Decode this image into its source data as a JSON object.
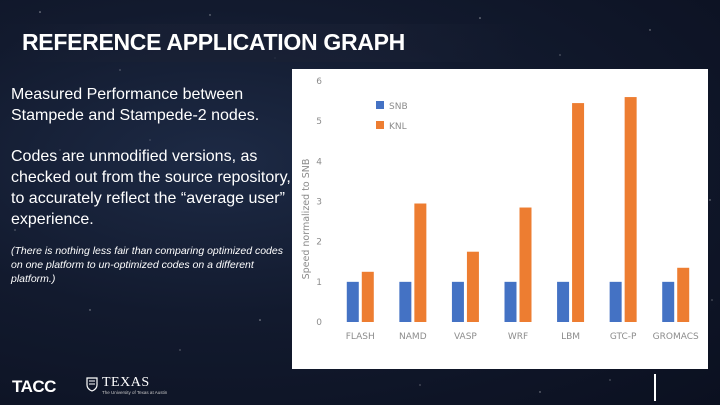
{
  "slide": {
    "title": "REFERENCE APPLICATION GRAPH",
    "paragraph_1": "Measured Performance between Stampede and Stampede-2 nodes.",
    "paragraph_2": "Codes are unmodified versions, as checked out from the source repository, to accurately reflect the “average user” experience.",
    "note": "(There is nothing less fair than comparing optimized codes on one platform to un-optimized codes on a different platform.)",
    "footer": {
      "tacc_logo_text": "TACC",
      "texas_logo_text": "TEXAS",
      "texas_logo_subtext": "The University of Texas at Austin"
    }
  },
  "colors": {
    "snb": "#4472c4",
    "knl": "#ed7d31",
    "axis_text": "#8c8c8c",
    "background": "#121a2e"
  },
  "chart_data": {
    "type": "bar",
    "categories": [
      "FLASH",
      "NAMD",
      "VASP",
      "WRF",
      "LBM",
      "GTC-P",
      "GROMACS"
    ],
    "series": [
      {
        "name": "SNB",
        "values": [
          1,
          1,
          1,
          1,
          1,
          1,
          1
        ]
      },
      {
        "name": "KNL",
        "values": [
          1.25,
          2.95,
          1.75,
          2.85,
          5.45,
          5.6,
          1.35
        ]
      }
    ],
    "ylabel": "Speed normalized to SNB",
    "xlabel": "",
    "ylim": [
      0,
      6
    ],
    "yticks": [
      "0",
      "1",
      "2",
      "3",
      "4",
      "5",
      "6"
    ],
    "grid": false,
    "legend_position": "top-left"
  }
}
